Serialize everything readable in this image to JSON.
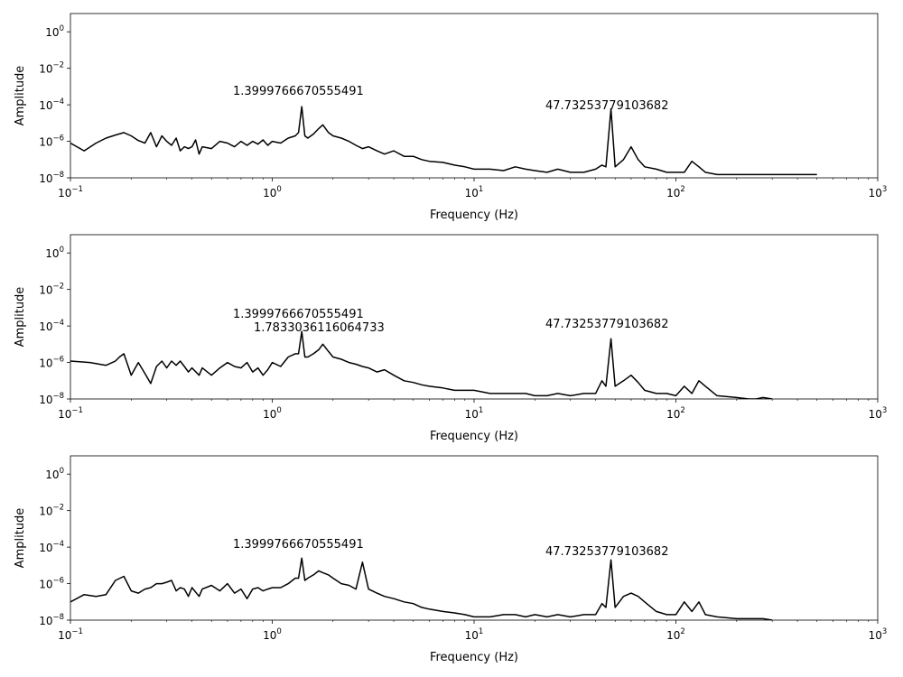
{
  "chart_data": [
    {
      "type": "line",
      "xscale": "log",
      "yscale": "log",
      "xlabel": "Frequency (Hz)",
      "ylabel": "Amplitude",
      "xlim": [
        0.1,
        1000
      ],
      "ylim": [
        1e-08,
        10
      ],
      "x_ticks": [
        0.1,
        1,
        10,
        100,
        1000
      ],
      "x_tick_labels": [
        [
          "10",
          "−1"
        ],
        [
          "10",
          "0"
        ],
        [
          "10",
          "1"
        ],
        [
          "10",
          "2"
        ],
        [
          "10",
          "3"
        ]
      ],
      "y_ticks": [
        1e-08,
        1e-06,
        0.0001,
        0.01,
        1
      ],
      "y_tick_labels": [
        [
          "10",
          "−8"
        ],
        [
          "10",
          "−6"
        ],
        [
          "10",
          "−4"
        ],
        [
          "10",
          "−2"
        ],
        [
          "10",
          "0"
        ]
      ],
      "grid": false,
      "series": [
        {
          "color": "#000000",
          "x": [
            0.1,
            0.117,
            0.134,
            0.15,
            0.167,
            0.184,
            0.2,
            0.217,
            0.234,
            0.25,
            0.267,
            0.284,
            0.3,
            0.317,
            0.334,
            0.35,
            0.367,
            0.384,
            0.4,
            0.417,
            0.434,
            0.45,
            0.5,
            0.55,
            0.6,
            0.65,
            0.7,
            0.75,
            0.8,
            0.85,
            0.9,
            0.95,
            1.0,
            1.1,
            1.2,
            1.3,
            1.35,
            1.4,
            1.45,
            1.5,
            1.6,
            1.7,
            1.78,
            1.9,
            2.0,
            2.2,
            2.4,
            2.6,
            2.8,
            3.0,
            3.3,
            3.6,
            4.0,
            4.5,
            5.0,
            5.5,
            6.0,
            7.0,
            8.0,
            9.0,
            10.0,
            12.0,
            14.0,
            16.0,
            18.0,
            20.0,
            23.0,
            26.0,
            30.0,
            35.0,
            40.0,
            43.0,
            45.0,
            47.7,
            50.0,
            55.0,
            60.0,
            65.0,
            70.0,
            80.0,
            90.0,
            100.0,
            110.0,
            120.0,
            130.0,
            140.0,
            160.0,
            200.0,
            250.0,
            300.0,
            400.0,
            500.0
          ],
          "y": [
            8e-07,
            3e-07,
            8e-07,
            1.5e-06,
            2.2e-06,
            3e-06,
            2e-06,
            1.1e-06,
            8e-07,
            3e-06,
            5e-07,
            2e-06,
            1e-06,
            6e-07,
            1.5e-06,
            3e-07,
            5e-07,
            4e-07,
            5e-07,
            1.2e-06,
            2e-07,
            5e-07,
            4e-07,
            1e-06,
            8e-07,
            5e-07,
            1e-06,
            6e-07,
            1e-06,
            7e-07,
            1.2e-06,
            6e-07,
            1e-06,
            8e-07,
            1.5e-06,
            2e-06,
            3e-06,
            8e-05,
            2e-06,
            1.5e-06,
            2.5e-06,
            5e-06,
            8e-06,
            3e-06,
            2e-06,
            1.5e-06,
            1e-06,
            6e-07,
            4e-07,
            5e-07,
            3e-07,
            2e-07,
            3e-07,
            1.5e-07,
            1.5e-07,
            1e-07,
            8e-08,
            7e-08,
            5e-08,
            4e-08,
            3e-08,
            3e-08,
            2.5e-08,
            4e-08,
            3e-08,
            2.5e-08,
            2e-08,
            3e-08,
            2e-08,
            2e-08,
            3e-08,
            5e-08,
            4e-08,
            6e-05,
            4e-08,
            1e-07,
            5e-07,
            1e-07,
            4e-08,
            3e-08,
            2e-08,
            2e-08,
            2e-08,
            8e-08,
            4e-08,
            2e-08,
            1.5e-08,
            1.5e-08,
            1.5e-08,
            1.5e-08,
            1.5e-08,
            1.5e-08
          ]
        }
      ],
      "annotations": [
        {
          "text": "1.3999766670555491",
          "x": 1.4,
          "y": 0.0005
        },
        {
          "text": "47.73253779103682",
          "x": 47.73,
          "y": 9e-05
        }
      ]
    },
    {
      "type": "line",
      "xscale": "log",
      "yscale": "log",
      "xlabel": "Frequency (Hz)",
      "ylabel": "Amplitude",
      "xlim": [
        0.1,
        1000
      ],
      "ylim": [
        1e-08,
        10
      ],
      "x_ticks": [
        0.1,
        1,
        10,
        100,
        1000
      ],
      "x_tick_labels": [
        [
          "10",
          "−1"
        ],
        [
          "10",
          "0"
        ],
        [
          "10",
          "1"
        ],
        [
          "10",
          "2"
        ],
        [
          "10",
          "3"
        ]
      ],
      "y_ticks": [
        1e-08,
        1e-06,
        0.0001,
        0.01,
        1
      ],
      "y_tick_labels": [
        [
          "10",
          "−8"
        ],
        [
          "10",
          "−6"
        ],
        [
          "10",
          "−4"
        ],
        [
          "10",
          "−2"
        ],
        [
          "10",
          "0"
        ]
      ],
      "grid": false,
      "series": [
        {
          "color": "#000000",
          "x": [
            0.1,
            0.125,
            0.15,
            0.167,
            0.175,
            0.184,
            0.2,
            0.217,
            0.234,
            0.25,
            0.267,
            0.284,
            0.3,
            0.317,
            0.334,
            0.35,
            0.367,
            0.384,
            0.4,
            0.434,
            0.45,
            0.5,
            0.55,
            0.6,
            0.65,
            0.7,
            0.75,
            0.8,
            0.85,
            0.9,
            0.95,
            1.0,
            1.1,
            1.2,
            1.3,
            1.35,
            1.4,
            1.45,
            1.5,
            1.6,
            1.7,
            1.78,
            1.9,
            2.0,
            2.2,
            2.4,
            2.6,
            2.8,
            3.0,
            3.3,
            3.6,
            4.0,
            4.5,
            5.0,
            5.5,
            6.0,
            7.0,
            8.0,
            9.0,
            10.0,
            12.0,
            14.0,
            16.0,
            18.0,
            20.0,
            23.0,
            26.0,
            30.0,
            35.0,
            40.0,
            43.0,
            45.0,
            47.7,
            50.0,
            55.0,
            60.0,
            65.0,
            70.0,
            80.0,
            90.0,
            100.0,
            110.0,
            120.0,
            130.0,
            140.0,
            160.0,
            200.0,
            230.0,
            250.0,
            270.0,
            300.0
          ],
          "y": [
            1.2e-06,
            1e-06,
            7e-07,
            1.2e-06,
            2e-06,
            3e-06,
            2e-07,
            1e-06,
            2.5e-07,
            7e-08,
            6e-07,
            1.2e-06,
            5e-07,
            1.2e-06,
            7e-07,
            1.2e-06,
            6e-07,
            3e-07,
            5e-07,
            2e-07,
            5e-07,
            2e-07,
            5e-07,
            1e-06,
            6e-07,
            5e-07,
            1e-06,
            3e-07,
            5e-07,
            2e-07,
            4e-07,
            1e-06,
            6e-07,
            2e-06,
            3e-06,
            3e-06,
            5e-05,
            2e-06,
            2e-06,
            3e-06,
            5e-06,
            1e-05,
            4e-06,
            2e-06,
            1.5e-06,
            1e-06,
            8e-07,
            6e-07,
            5e-07,
            3e-07,
            4e-07,
            2e-07,
            1e-07,
            8e-08,
            6e-08,
            5e-08,
            4e-08,
            3e-08,
            3e-08,
            3e-08,
            2e-08,
            2e-08,
            2e-08,
            2e-08,
            1.5e-08,
            1.5e-08,
            2e-08,
            1.5e-08,
            2e-08,
            2e-08,
            1e-07,
            5e-08,
            2e-05,
            5e-08,
            1e-07,
            2e-07,
            8e-08,
            3e-08,
            2e-08,
            2e-08,
            1.5e-08,
            5e-08,
            2e-08,
            1e-07,
            5e-08,
            1.5e-08,
            1.2e-08,
            1e-08,
            1e-08,
            1.2e-08,
            1e-08
          ]
        }
      ],
      "annotations": [
        {
          "text": "1.3999766670555491",
          "x": 1.4,
          "y": 0.0005
        },
        {
          "text": "1.7833036116064733",
          "x": 1.78,
          "y": 9e-05
        },
        {
          "text": "47.73253779103682",
          "x": 47.73,
          "y": 0.0001
        }
      ]
    },
    {
      "type": "line",
      "xscale": "log",
      "yscale": "log",
      "xlabel": "Frequency (Hz)",
      "ylabel": "Amplitude",
      "xlim": [
        0.1,
        1000
      ],
      "ylim": [
        1e-08,
        10
      ],
      "x_ticks": [
        0.1,
        1,
        10,
        100,
        1000
      ],
      "x_tick_labels": [
        [
          "10",
          "−1"
        ],
        [
          "10",
          "0"
        ],
        [
          "10",
          "1"
        ],
        [
          "10",
          "2"
        ],
        [
          "10",
          "3"
        ]
      ],
      "y_ticks": [
        1e-08,
        1e-06,
        0.0001,
        0.01,
        1
      ],
      "y_tick_labels": [
        [
          "10",
          "−8"
        ],
        [
          "10",
          "−6"
        ],
        [
          "10",
          "−4"
        ],
        [
          "10",
          "−2"
        ],
        [
          "10",
          "0"
        ]
      ],
      "grid": false,
      "series": [
        {
          "color": "#000000",
          "x": [
            0.1,
            0.117,
            0.134,
            0.15,
            0.167,
            0.184,
            0.2,
            0.217,
            0.234,
            0.25,
            0.267,
            0.284,
            0.3,
            0.317,
            0.334,
            0.35,
            0.367,
            0.384,
            0.4,
            0.434,
            0.45,
            0.5,
            0.55,
            0.6,
            0.65,
            0.7,
            0.75,
            0.8,
            0.85,
            0.9,
            0.95,
            1.0,
            1.1,
            1.2,
            1.3,
            1.35,
            1.4,
            1.45,
            1.5,
            1.6,
            1.7,
            1.78,
            1.9,
            2.0,
            2.2,
            2.4,
            2.6,
            2.8,
            3.0,
            3.3,
            3.6,
            4.0,
            4.5,
            5.0,
            5.5,
            6.0,
            7.0,
            8.0,
            9.0,
            10.0,
            12.0,
            14.0,
            16.0,
            18.0,
            20.0,
            23.0,
            26.0,
            30.0,
            35.0,
            40.0,
            43.0,
            45.0,
            47.7,
            50.0,
            55.0,
            60.0,
            65.0,
            70.0,
            80.0,
            90.0,
            100.0,
            110.0,
            120.0,
            130.0,
            140.0,
            160.0,
            200.0,
            250.0,
            270.0,
            300.0
          ],
          "y": [
            1e-07,
            2.5e-07,
            2e-07,
            2.5e-07,
            1.5e-06,
            2.5e-06,
            4e-07,
            3e-07,
            5e-07,
            6e-07,
            1e-06,
            1e-06,
            1.2e-06,
            1.5e-06,
            4e-07,
            6e-07,
            5e-07,
            2e-07,
            6e-07,
            2e-07,
            5e-07,
            8e-07,
            4e-07,
            1e-06,
            3e-07,
            5e-07,
            1.5e-07,
            5e-07,
            6e-07,
            4e-07,
            5e-07,
            6e-07,
            6e-07,
            1e-06,
            2e-06,
            2e-06,
            2.5e-05,
            1.5e-06,
            2e-06,
            3e-06,
            5e-06,
            4e-06,
            3e-06,
            2e-06,
            1e-06,
            8e-07,
            5e-07,
            1.5e-05,
            5e-07,
            3e-07,
            2e-07,
            1.5e-07,
            1e-07,
            8e-08,
            5e-08,
            4e-08,
            3e-08,
            2.5e-08,
            2e-08,
            1.5e-08,
            1.5e-08,
            2e-08,
            2e-08,
            1.5e-08,
            2e-08,
            1.5e-08,
            2e-08,
            1.5e-08,
            2e-08,
            2e-08,
            8e-08,
            5e-08,
            2e-05,
            5e-08,
            2e-07,
            3e-07,
            2e-07,
            1e-07,
            3e-08,
            2e-08,
            2e-08,
            1e-07,
            3e-08,
            1e-07,
            2e-08,
            1.5e-08,
            1.2e-08,
            1.2e-08,
            1.2e-08,
            1e-08
          ]
        }
      ],
      "annotations": [
        {
          "text": "1.3999766670555491",
          "x": 1.4,
          "y": 0.0004
        },
        {
          "text": "47.73253779103682",
          "x": 47.73,
          "y": 0.00015
        }
      ]
    }
  ]
}
